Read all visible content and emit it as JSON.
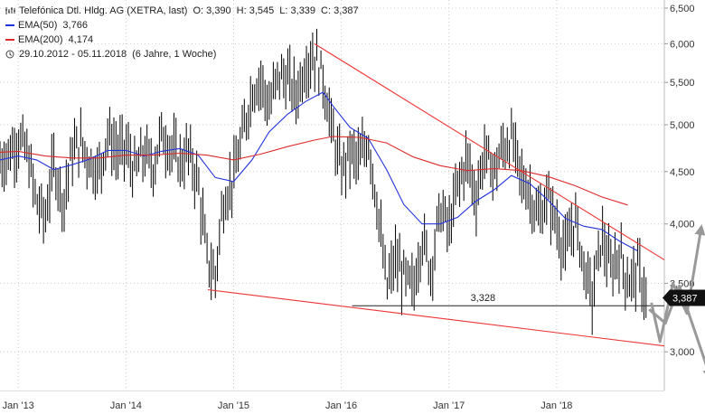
{
  "header": {
    "title": "Telefónica Dtl. Hldg. AG (XETRA, last)",
    "ohlc": [
      {
        "label": "O:",
        "value": "3,390"
      },
      {
        "label": "H:",
        "value": "3,545"
      },
      {
        "label": "L:",
        "value": "3,339"
      },
      {
        "label": "C:",
        "value": "3,387"
      }
    ],
    "date_range": "29.10.2012 - 05.11.2018",
    "period": "(6 Jahre, 1 Woche)"
  },
  "colors": {
    "price": "#000000",
    "ema50": "#2233dd",
    "ema200": "#dd2a2a",
    "trend": "#ee3333",
    "projection": "#999999",
    "grid": "#cccccc",
    "last_badge": "#111111"
  },
  "chart_data": {
    "type": "line",
    "xlim": [
      2012.83,
      2019.0
    ],
    "ylim": [
      2.75,
      6.62
    ],
    "y_scale": "log",
    "y_axis_side": "right",
    "grid": true,
    "x_ticks": [
      {
        "x": 2013.0,
        "label": "Jan '13"
      },
      {
        "x": 2014.0,
        "label": "Jan '14"
      },
      {
        "x": 2015.0,
        "label": "Jan '15"
      },
      {
        "x": 2016.0,
        "label": "Jan '16"
      },
      {
        "x": 2017.0,
        "label": "Jan '17"
      },
      {
        "x": 2018.0,
        "label": "Jan '18"
      }
    ],
    "y_ticks": [
      {
        "y": 3.0,
        "label": "3,000"
      },
      {
        "y": 3.5,
        "label": "3,500"
      },
      {
        "y": 4.0,
        "label": "4,000"
      },
      {
        "y": 4.5,
        "label": "4,500"
      },
      {
        "y": 5.0,
        "label": "5,000"
      },
      {
        "y": 5.5,
        "label": "5,500"
      },
      {
        "y": 6.0,
        "label": "6,000"
      },
      {
        "y": 6.5,
        "label": "6,500"
      }
    ],
    "series": [
      {
        "name": "Telefónica Dtl. Hldg. AG",
        "role": "price",
        "x": [
          2012.83,
          2012.92,
          2013.0,
          2013.08,
          2013.17,
          2013.25,
          2013.33,
          2013.42,
          2013.5,
          2013.58,
          2013.67,
          2013.75,
          2013.83,
          2013.92,
          2014.0,
          2014.08,
          2014.17,
          2014.25,
          2014.33,
          2014.42,
          2014.5,
          2014.58,
          2014.67,
          2014.75,
          2014.83,
          2014.9,
          2015.0,
          2015.08,
          2015.17,
          2015.25,
          2015.33,
          2015.42,
          2015.5,
          2015.58,
          2015.67,
          2015.75,
          2015.83,
          2015.92,
          2016.0,
          2016.08,
          2016.17,
          2016.25,
          2016.33,
          2016.42,
          2016.5,
          2016.58,
          2016.67,
          2016.75,
          2016.83,
          2016.92,
          2017.0,
          2017.08,
          2017.17,
          2017.25,
          2017.33,
          2017.42,
          2017.5,
          2017.58,
          2017.67,
          2017.75,
          2017.83,
          2017.92,
          2018.0,
          2018.08,
          2018.17,
          2018.25,
          2018.33,
          2018.42,
          2018.5,
          2018.58,
          2018.67,
          2018.75,
          2018.84
        ],
        "y": [
          4.6,
          4.7,
          4.85,
          4.7,
          4.2,
          4.05,
          4.6,
          4.2,
          4.7,
          4.8,
          4.6,
          4.5,
          4.9,
          4.7,
          4.75,
          4.5,
          4.7,
          4.55,
          4.9,
          4.75,
          4.6,
          4.7,
          4.4,
          3.7,
          3.55,
          4.2,
          4.45,
          4.85,
          5.4,
          5.55,
          5.2,
          5.6,
          5.55,
          5.35,
          5.75,
          5.85,
          5.55,
          4.9,
          4.5,
          4.7,
          4.6,
          4.85,
          4.2,
          3.45,
          3.7,
          3.55,
          3.45,
          3.9,
          3.6,
          4.15,
          3.95,
          4.35,
          4.65,
          4.25,
          4.7,
          4.5,
          4.75,
          4.85,
          4.45,
          4.3,
          4.05,
          4.25,
          4.0,
          3.75,
          4.05,
          3.65,
          3.4,
          3.9,
          3.6,
          3.75,
          3.5,
          3.62,
          3.387
        ]
      },
      {
        "name": "EMA(50)",
        "role": "ema50",
        "value_label": "3,766",
        "x": [
          2012.83,
          2013.0,
          2013.17,
          2013.33,
          2013.5,
          2013.67,
          2013.83,
          2014.0,
          2014.17,
          2014.33,
          2014.5,
          2014.67,
          2014.83,
          2015.0,
          2015.17,
          2015.33,
          2015.5,
          2015.67,
          2015.83,
          2015.92,
          2016.08,
          2016.25,
          2016.42,
          2016.58,
          2016.75,
          2016.92,
          2017.08,
          2017.25,
          2017.42,
          2017.58,
          2017.75,
          2017.92,
          2018.08,
          2018.25,
          2018.42,
          2018.58,
          2018.75
        ],
        "y": [
          4.62,
          4.66,
          4.62,
          4.52,
          4.57,
          4.63,
          4.72,
          4.72,
          4.66,
          4.71,
          4.74,
          4.67,
          4.44,
          4.4,
          4.62,
          4.92,
          5.12,
          5.27,
          5.38,
          5.22,
          4.97,
          4.85,
          4.52,
          4.18,
          4.0,
          4.0,
          4.06,
          4.21,
          4.32,
          4.46,
          4.38,
          4.22,
          4.05,
          3.98,
          3.95,
          3.85,
          3.766
        ]
      },
      {
        "name": "EMA(200)",
        "role": "ema200",
        "value_label": "4,174",
        "x": [
          2012.83,
          2013.0,
          2013.25,
          2013.5,
          2013.75,
          2014.0,
          2014.25,
          2014.5,
          2014.75,
          2015.0,
          2015.25,
          2015.5,
          2015.75,
          2015.92,
          2016.17,
          2016.42,
          2016.67,
          2016.92,
          2017.17,
          2017.42,
          2017.67,
          2017.92,
          2018.17,
          2018.42,
          2018.66
        ],
        "y": [
          4.7,
          4.71,
          4.66,
          4.64,
          4.64,
          4.67,
          4.67,
          4.69,
          4.67,
          4.62,
          4.68,
          4.76,
          4.83,
          4.87,
          4.86,
          4.8,
          4.65,
          4.56,
          4.51,
          4.53,
          4.51,
          4.45,
          4.36,
          4.25,
          4.174
        ]
      }
    ],
    "trendlines": [
      {
        "from": [
          2015.75,
          6.0
        ],
        "to": [
          2019.0,
          3.69
        ]
      },
      {
        "from": [
          2014.76,
          3.45
        ],
        "to": [
          2019.0,
          3.04
        ]
      }
    ],
    "support_line": {
      "from": [
        2016.1,
        3.328
      ],
      "to": [
        2019.0,
        3.328
      ],
      "label": "3,328",
      "label_x": 2017.2
    },
    "projections": [
      [
        [
          2018.88,
          3.35
        ],
        [
          2018.96,
          3.07
        ],
        [
          2019.08,
          3.5
        ],
        [
          2019.21,
          3.27
        ],
        [
          2019.34,
          3.95
        ]
      ],
      [
        [
          2018.86,
          3.3
        ],
        [
          2019.01,
          3.2
        ],
        [
          2019.14,
          3.48
        ],
        [
          2019.42,
          2.85
        ]
      ]
    ],
    "last_value": {
      "y": 3.387,
      "label": "3,387"
    }
  }
}
